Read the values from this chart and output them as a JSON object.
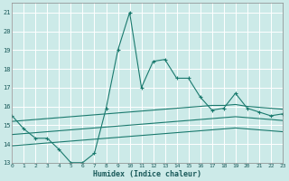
{
  "xlabel": "Humidex (Indice chaleur)",
  "x_values": [
    0,
    1,
    2,
    3,
    4,
    5,
    6,
    7,
    8,
    9,
    10,
    11,
    12,
    13,
    14,
    15,
    16,
    17,
    18,
    19,
    20,
    21,
    22,
    23
  ],
  "line1_y": [
    15.5,
    14.8,
    14.3,
    14.3,
    13.7,
    13.0,
    13.0,
    13.5,
    15.9,
    19.0,
    21.0,
    17.0,
    18.4,
    18.5,
    17.5,
    17.5,
    16.5,
    15.8,
    15.9,
    16.7,
    15.9,
    15.7,
    15.5,
    15.6
  ],
  "line2_y": [
    15.2,
    15.25,
    15.3,
    15.35,
    15.4,
    15.45,
    15.5,
    15.55,
    15.6,
    15.65,
    15.7,
    15.75,
    15.8,
    15.85,
    15.9,
    15.95,
    16.0,
    16.05,
    16.05,
    16.1,
    16.0,
    15.95,
    15.9,
    15.85
  ],
  "line3_y": [
    14.5,
    14.55,
    14.6,
    14.65,
    14.7,
    14.75,
    14.8,
    14.85,
    14.9,
    14.95,
    15.0,
    15.05,
    15.1,
    15.15,
    15.2,
    15.25,
    15.3,
    15.35,
    15.4,
    15.45,
    15.4,
    15.35,
    15.3,
    15.25
  ],
  "line4_y": [
    13.9,
    13.95,
    14.0,
    14.05,
    14.1,
    14.15,
    14.2,
    14.25,
    14.3,
    14.35,
    14.4,
    14.45,
    14.5,
    14.55,
    14.6,
    14.65,
    14.7,
    14.75,
    14.8,
    14.85,
    14.8,
    14.75,
    14.7,
    14.65
  ],
  "line_color": "#1a7a6e",
  "bg_color": "#cceae8",
  "grid_color": "#ffffff",
  "xlim": [
    0,
    23
  ],
  "ylim": [
    13,
    21.5
  ],
  "yticks": [
    13,
    14,
    15,
    16,
    17,
    18,
    19,
    20,
    21
  ],
  "xticks": [
    0,
    1,
    2,
    3,
    4,
    5,
    6,
    7,
    8,
    9,
    10,
    11,
    12,
    13,
    14,
    15,
    16,
    17,
    18,
    19,
    20,
    21,
    22,
    23
  ]
}
